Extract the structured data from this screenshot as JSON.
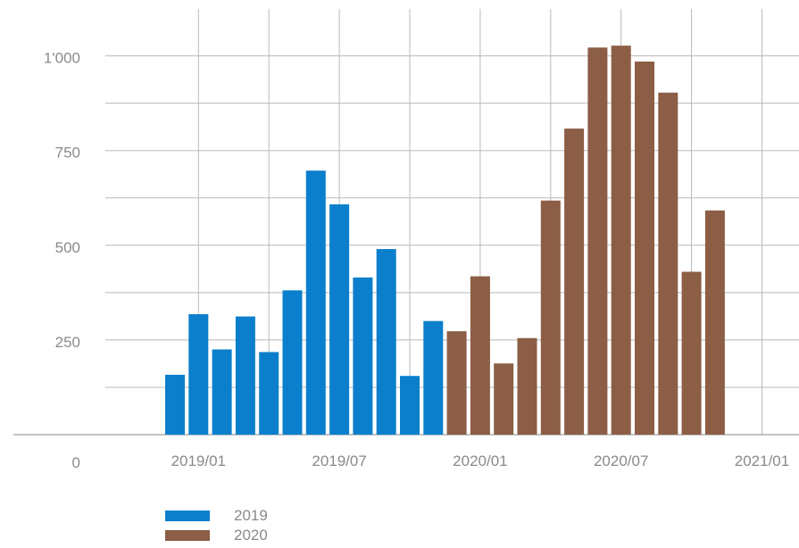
{
  "chart_data": {
    "type": "bar",
    "title": "",
    "xlabel": "",
    "ylabel": "",
    "ylim": [
      0,
      1060
    ],
    "y_ticks": [
      0,
      250,
      500,
      750,
      1000
    ],
    "y_tick_labels": [
      "0",
      "250",
      "500",
      "750",
      "1'000"
    ],
    "x_tick_labels": [
      "2019/01",
      "2019/07",
      "2020/01",
      "2020/07",
      "2021/01"
    ],
    "grid": true,
    "legend_position": "bottom-left",
    "categories": [
      "2018/12",
      "2019/01",
      "2019/02",
      "2019/03",
      "2019/04",
      "2019/05",
      "2019/06",
      "2019/07",
      "2019/08",
      "2019/09",
      "2019/10",
      "2019/11",
      "2019/12",
      "2020/01",
      "2020/02",
      "2020/03",
      "2020/04",
      "2020/05",
      "2020/06",
      "2020/07",
      "2020/08",
      "2020/09",
      "2020/10",
      "2020/11"
    ],
    "series": [
      {
        "name": "2019",
        "color": "#0b7fcb",
        "values": [
          158,
          318,
          225,
          312,
          218,
          381,
          697,
          608,
          415,
          490,
          155,
          300,
          null,
          null,
          null,
          null,
          null,
          null,
          null,
          null,
          null,
          null,
          null,
          null
        ]
      },
      {
        "name": "2020",
        "color": "#8b5e45",
        "values": [
          null,
          null,
          null,
          null,
          null,
          null,
          null,
          null,
          null,
          null,
          null,
          null,
          273,
          418,
          188,
          255,
          618,
          808,
          1022,
          1027,
          985,
          903,
          430,
          592
        ]
      }
    ]
  }
}
